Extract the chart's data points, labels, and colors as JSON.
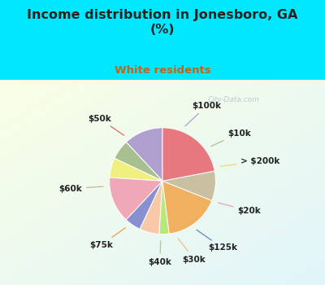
{
  "title": "Income distribution in Jonesboro, GA\n(%)",
  "subtitle": "White residents",
  "labels": [
    "$100k",
    "$10k",
    "> $200k",
    "$20k",
    "$125k",
    "$30k",
    "$40k",
    "$75k",
    "$60k",
    "$50k"
  ],
  "sizes": [
    12,
    6,
    6,
    14,
    5,
    6,
    3,
    17,
    9,
    22
  ],
  "colors": [
    "#b0a0d0",
    "#a8c090",
    "#f0f080",
    "#f0a8b8",
    "#8890d0",
    "#f8c8a8",
    "#b8e878",
    "#f0b060",
    "#c8c0a0",
    "#e87880"
  ],
  "line_colors": [
    "#b0a0d0",
    "#a8c090",
    "#e8e060",
    "#f0a0b0",
    "#7080c0",
    "#f8b890",
    "#a8d860",
    "#f0a050",
    "#c8b890",
    "#e06870"
  ],
  "bg_color": "#00e8ff",
  "chart_bg": [
    "#e0f0e8",
    "#d8f0f8",
    "#e8f8f0"
  ],
  "title_color": "#222222",
  "subtitle_color": "#b86820",
  "watermark": "City-Data.com",
  "startangle": 90,
  "label_fontsize": 7.5,
  "label_fontweight": "bold"
}
